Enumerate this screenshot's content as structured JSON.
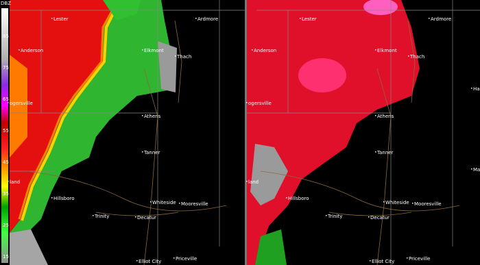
{
  "legend": {
    "title": "DBZ",
    "labels": [
      "85",
      "75",
      "65",
      "55",
      "45",
      "35",
      "25",
      "15"
    ]
  },
  "panels": [
    {
      "towns": [
        "Lester",
        "Ardmore",
        "Anderson",
        "Elkmont",
        "Thach",
        "ogersville",
        "Athens",
        "Tanner",
        "land",
        "Hillsboro",
        "Whiteside",
        "Mooresville",
        "Trinity",
        "Decatur",
        "Priceville",
        "Elliot City"
      ]
    },
    {
      "towns": [
        "Lester",
        "Ardmore",
        "Anderson",
        "Elkmont",
        "Thach",
        "Harve",
        "ogersville",
        "Athens",
        "Tanner",
        "Madi",
        "land",
        "Hillsboro",
        "Whiteside",
        "Mooresville",
        "Trinity",
        "Decatur",
        "Priceville",
        "Elliot City"
      ]
    }
  ]
}
